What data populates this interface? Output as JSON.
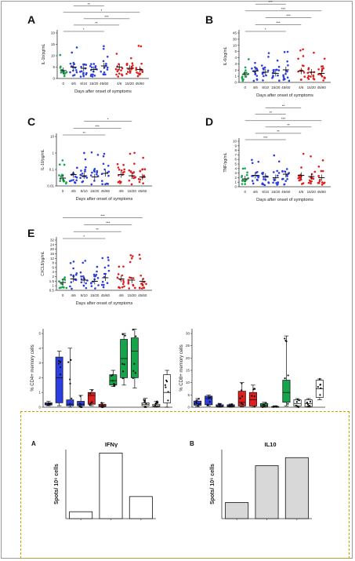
{
  "chart_data": [
    {
      "type": "scatter",
      "panel": "A",
      "ylabel": "IL-1b/pg/mL",
      "xlabel": "Days after onset of symptoms",
      "yticks": [
        "0",
        "5",
        "10",
        "15",
        "20"
      ],
      "ylim": [
        0,
        20
      ],
      "categories": [
        "0",
        "4/6",
        "8/10",
        "15/20",
        "45/60",
        "4/6",
        "15/20",
        "45/60"
      ],
      "group_colors": [
        "#16a34a",
        "#2b3ee0",
        "#2b3ee0",
        "#2b3ee0",
        "#2b3ee0",
        "#e11d1d",
        "#e11d1d",
        "#e11d1d"
      ],
      "means": [
        2.5,
        4.5,
        4.0,
        3.5,
        3.0,
        2.0,
        1.8,
        1.5
      ],
      "significance": [
        "*",
        "**",
        "***",
        "*",
        "**",
        "***",
        "***"
      ]
    },
    {
      "type": "scatter",
      "panel": "B",
      "ylabel": "IL-6/pg/mL",
      "xlabel": "Days after onset of symptoms",
      "yticks": [
        "0",
        "1",
        "2",
        "3",
        "4",
        "5",
        "10",
        "30",
        "45"
      ],
      "categories": [
        "0",
        "4/6",
        "8/10",
        "15/20",
        "45/60",
        "4/6",
        "15/20",
        "45/60"
      ],
      "group_colors": [
        "#16a34a",
        "#2b3ee0",
        "#2b3ee0",
        "#2b3ee0",
        "#2b3ee0",
        "#e11d1d",
        "#e11d1d",
        "#e11d1d"
      ],
      "means": [
        0.2,
        1.5,
        1.2,
        1.0,
        0.8,
        4.5,
        2.5,
        2.0
      ],
      "significance": [
        "*",
        "***",
        "***",
        "***",
        "***"
      ]
    },
    {
      "type": "scatter",
      "panel": "C",
      "ylabel": "IL-10/pg/mL",
      "xlabel": "Days after onset of symptoms",
      "yticks": [
        "0.01",
        "0.1",
        "1",
        "10"
      ],
      "log_scale": true,
      "categories": [
        "0",
        "4/6",
        "8/10",
        "15/20",
        "45/60",
        "4/6",
        "15/20",
        "45/60"
      ],
      "group_colors": [
        "#16a34a",
        "#2b3ee0",
        "#2b3ee0",
        "#2b3ee0",
        "#2b3ee0",
        "#e11d1d",
        "#e11d1d",
        "#e11d1d"
      ],
      "means": [
        0.09,
        0.9,
        0.5,
        0.35,
        0.15,
        1.2,
        0.6,
        0.35
      ],
      "significance": [
        "**",
        "***",
        "*"
      ]
    },
    {
      "type": "scatter",
      "panel": "D",
      "ylabel": "TNF/pg/mL",
      "xlabel": "Days after onset of symptoms",
      "yticks": [
        "0",
        "1",
        "2",
        "3",
        "4",
        "5",
        "6",
        "7",
        "8",
        "9",
        "10"
      ],
      "ylim": [
        0,
        10
      ],
      "categories": [
        "0",
        "4/6",
        "8/10",
        "15/20",
        "45/60",
        "4/6",
        "15/20",
        "45/60"
      ],
      "group_colors": [
        "#16a34a",
        "#2b3ee0",
        "#2b3ee0",
        "#2b3ee0",
        "#2b3ee0",
        "#e11d1d",
        "#e11d1d",
        "#e11d1d"
      ],
      "means": [
        0.5,
        1.5,
        1.3,
        1.0,
        0.9,
        0.8,
        0.7,
        0.8
      ],
      "significance": [
        "***",
        "**",
        "**",
        "***",
        "**",
        "**"
      ]
    },
    {
      "type": "scatter",
      "panel": "E",
      "ylabel": "CXCL8/pg/mL",
      "xlabel": "Days after onset of symptoms",
      "yticks": [
        "0.5",
        "1",
        "1.5",
        "2",
        "4",
        "6",
        "8",
        "12",
        "16",
        "20",
        "24",
        "32"
      ],
      "categories": [
        "0",
        "4/6",
        "8/10",
        "15/20",
        "45/60",
        "4/6",
        "15/20",
        "45/60"
      ],
      "group_colors": [
        "#16a34a",
        "#2b3ee0",
        "#2b3ee0",
        "#2b3ee0",
        "#2b3ee0",
        "#e11d1d",
        "#e11d1d",
        "#e11d1d"
      ],
      "means": [
        1.0,
        6.0,
        6.0,
        6.0,
        6.0,
        8.0,
        8.0,
        8.0
      ],
      "significance": [
        "*",
        "**",
        "***",
        "***"
      ]
    },
    {
      "type": "box",
      "panel": "CD4",
      "ylabel": "% CD4+ memory cells",
      "yticks": [
        "0",
        "1",
        "2",
        "3",
        "4",
        "5"
      ],
      "ylim": [
        0,
        5
      ],
      "boxes": [
        {
          "color": "#2b3ee0",
          "q1": 0.15,
          "median": 0.2,
          "q3": 0.3,
          "min": 0.1,
          "max": 0.4
        },
        {
          "color": "#2b3ee0",
          "q1": 0.3,
          "median": 2.0,
          "q3": 3.4,
          "min": 0.1,
          "max": 3.8
        },
        {
          "color": "#2b3ee0",
          "q1": 0.1,
          "median": 0.2,
          "q3": 0.5,
          "min": 0.0,
          "max": 4.0
        },
        {
          "color": "#2b3ee0",
          "q1": 0.1,
          "median": 0.2,
          "q3": 0.4,
          "min": 0.0,
          "max": 0.8
        },
        {
          "color": "#e11d1d",
          "q1": 0.2,
          "median": 0.8,
          "q3": 1.0,
          "min": 0.1,
          "max": 1.2
        },
        {
          "color": "#e11d1d",
          "q1": 0.05,
          "median": 0.1,
          "q3": 0.2,
          "min": 0.0,
          "max": 0.3
        },
        {
          "color": "#16a34a",
          "q1": 1.5,
          "median": 1.8,
          "q3": 2.2,
          "min": 1.4,
          "max": 2.5
        },
        {
          "color": "#16a34a",
          "q1": 2.0,
          "median": 3.3,
          "q3": 4.6,
          "min": 1.5,
          "max": 5.0
        },
        {
          "color": "#16a34a",
          "q1": 2.0,
          "median": 3.8,
          "q3": 4.7,
          "min": 1.3,
          "max": 5.3
        },
        {
          "color": "#ffffff",
          "q1": 0.1,
          "median": 0.2,
          "q3": 0.3,
          "min": 0.0,
          "max": 0.6
        },
        {
          "color": "#ffffff",
          "q1": 0.05,
          "median": 0.1,
          "q3": 0.2,
          "min": 0.0,
          "max": 0.4
        },
        {
          "color": "#ffffff",
          "q1": 0.3,
          "median": 1.0,
          "q3": 2.2,
          "min": 0.0,
          "max": 2.5
        }
      ]
    },
    {
      "type": "box",
      "panel": "CD8",
      "ylabel": "% CD8+ memory cells",
      "yticks": [
        "0",
        "5",
        "10",
        "15",
        "20",
        "25",
        "30"
      ],
      "ylim": [
        0,
        30
      ],
      "boxes": [
        {
          "color": "#2b3ee0",
          "q1": 0.8,
          "median": 1.5,
          "q3": 2.5,
          "min": 0.3,
          "max": 3.5
        },
        {
          "color": "#2b3ee0",
          "q1": 1.0,
          "median": 3.5,
          "q3": 4.5,
          "min": 0.5,
          "max": 5.0
        },
        {
          "color": "#2b3ee0",
          "q1": 0.2,
          "median": 0.5,
          "q3": 1.0,
          "min": 0.0,
          "max": 1.5
        },
        {
          "color": "#2b3ee0",
          "q1": 0.2,
          "median": 0.5,
          "q3": 1.0,
          "min": 0.0,
          "max": 1.3
        },
        {
          "color": "#e11d1d",
          "q1": 0.5,
          "median": 2.0,
          "q3": 6.5,
          "min": 0.2,
          "max": 10.0
        },
        {
          "color": "#e11d1d",
          "q1": 0.5,
          "median": 3.0,
          "q3": 6.0,
          "min": 0.0,
          "max": 9.0
        },
        {
          "color": "#16a34a",
          "q1": 0.2,
          "median": 0.8,
          "q3": 1.5,
          "min": 0.0,
          "max": 2.0
        },
        {
          "color": "#16a34a",
          "q1": 0.1,
          "median": 0.2,
          "q3": 0.3,
          "min": 0.0,
          "max": 0.5
        },
        {
          "color": "#16a34a",
          "q1": 2.0,
          "median": 6.0,
          "q3": 11.0,
          "min": 0.5,
          "max": 29.0
        },
        {
          "color": "#ffffff",
          "q1": 0.5,
          "median": 1.5,
          "q3": 3.0,
          "min": 0.0,
          "max": 3.5
        },
        {
          "color": "#ffffff",
          "q1": 0.3,
          "median": 1.5,
          "q3": 3.0,
          "min": 0.0,
          "max": 3.5
        },
        {
          "color": "#ffffff",
          "q1": 4.0,
          "median": 7.5,
          "q3": 11.0,
          "min": 3.0,
          "max": 11.5
        }
      ]
    },
    {
      "type": "bar",
      "panel": "A",
      "title": "IFNγ",
      "ylabel": "Spots/ 10⁶ cells",
      "values": [
        1.0,
        9.5,
        3.2
      ],
      "ylim": [
        0,
        10
      ],
      "bar_fill": "#ffffff"
    },
    {
      "type": "bar",
      "panel": "B",
      "title": "IL10",
      "ylabel": "Spots/ 10⁶ cells",
      "values": [
        0.7,
        2.3,
        2.65
      ],
      "ylim": [
        0,
        3
      ],
      "bar_fill": "#d8d8d8"
    }
  ]
}
